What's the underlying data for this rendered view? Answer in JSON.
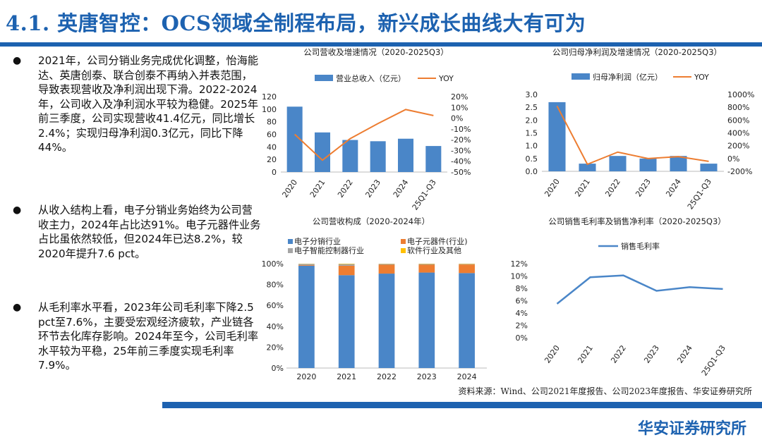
{
  "header": {
    "title": "4.1. 英唐智控：OCS领域全制程布局，新兴成长曲线大有可为"
  },
  "bullets": [
    "2021年，公司分销业务完成优化调整，怡海能达、英唐创泰、联合创泰不再纳入并表范围，导致表现营收及净利润出现下滑。2022-2024年，公司收入及净利润水平较为稳健。2025年前三季度，公司实现营收41.4亿元，同比增长2.4%；实现归母净利润0.3亿元，同比下降44%。",
    "从收入结构上看，电子分销业务始终为公司营收主力，2024年占比达91%。电子元器件业务占比虽依然较低，但2024年已达8.2%，较2020年提升7.6 pct。",
    "从毛利率水平看，2023年公司毛利率下降2.5 pct至7.6%，主要受宏观经济疲软，产业链各环节去化库存影响。2024年至今，公司毛利率水平较为平稳，25年前三季度实现毛利率7.9%。"
  ],
  "footer": {
    "source": "资料来源：Wind、公司2021年度报告、公司2023年度报告、华安证券研究所",
    "firm": "华安证券研究所"
  },
  "colors": {
    "brand": "#1d62b0",
    "bar": "#4a86c8",
    "line": "#ed7d31",
    "yellow": "#ffc000",
    "gray": "#a5a5a5"
  },
  "chart_data": [
    {
      "type": "bar",
      "title": "公司营收及增速情况（2020-2025Q3）",
      "categories": [
        "2020",
        "2021",
        "2022",
        "2023",
        "2024",
        "25Q1-Q3"
      ],
      "series": [
        {
          "name": "营业总收入（亿元）",
          "kind": "bar",
          "axis": "left",
          "values": [
            104,
            63,
            51,
            49,
            53,
            41.4
          ]
        },
        {
          "name": "YOY",
          "kind": "line",
          "axis": "right",
          "values": [
            -15,
            -39,
            -19,
            -5,
            8,
            2.4
          ]
        }
      ],
      "left_ticks": [
        "0",
        "20",
        "40",
        "60",
        "80",
        "100",
        "120"
      ],
      "right_ticks": [
        "-50%",
        "-40%",
        "-30%",
        "-20%",
        "-10%",
        "0%",
        "10%",
        "20%"
      ],
      "ylim": [
        0,
        120
      ],
      "y2lim": [
        -50,
        20
      ]
    },
    {
      "type": "bar",
      "title": "公司归母净利润及增速情况（2020-2025Q3）",
      "categories": [
        "2020",
        "2021",
        "2022",
        "2023",
        "2024",
        "25Q1-Q3"
      ],
      "series": [
        {
          "name": "归母净利润（亿元）",
          "kind": "bar",
          "axis": "left",
          "values": [
            2.7,
            0.3,
            0.6,
            0.5,
            0.6,
            0.3
          ]
        },
        {
          "name": "YOY",
          "kind": "line",
          "axis": "right",
          "values": [
            820,
            -90,
            100,
            0,
            30,
            -44
          ]
        }
      ],
      "left_ticks": [
        "0.0",
        "0.5",
        "1.0",
        "1.5",
        "2.0",
        "2.5",
        "3.0"
      ],
      "right_ticks": [
        "-200%",
        "0%",
        "200%",
        "400%",
        "600%",
        "800%",
        "1000%"
      ],
      "ylim": [
        0,
        3
      ],
      "y2lim": [
        -200,
        1000
      ]
    },
    {
      "type": "bar",
      "stacked": true,
      "title": "公司营收构成（2020-2024年）",
      "categories": [
        "2020",
        "2021",
        "2022",
        "2023",
        "2024"
      ],
      "series": [
        {
          "name": "电子分销行业",
          "values": [
            98.0,
            89.0,
            90.5,
            91.5,
            91.0
          ]
        },
        {
          "name": "电子元器件(行业)",
          "values": [
            0.6,
            9.0,
            8.5,
            7.5,
            8.2
          ]
        },
        {
          "name": "电子智能控制器行业",
          "values": [
            1.2,
            1.6,
            0.8,
            0.7,
            0.5
          ]
        },
        {
          "name": "软件行业及其他",
          "values": [
            0.2,
            0.4,
            0.2,
            0.3,
            0.3
          ]
        }
      ],
      "ticks": [
        "0%",
        "20%",
        "40%",
        "60%",
        "80%",
        "100%"
      ],
      "ylim": [
        0,
        100
      ]
    },
    {
      "type": "line",
      "title": "公司销售毛利率及销售净利率（2020-2025Q3）",
      "categories": [
        "2020",
        "2021",
        "2022",
        "2023",
        "2024",
        "25Q1-Q3"
      ],
      "series": [
        {
          "name": "销售毛利率",
          "values": [
            5.5,
            9.8,
            10.1,
            7.6,
            8.2,
            7.9
          ]
        }
      ],
      "ticks": [
        "0%",
        "2%",
        "4%",
        "6%",
        "8%",
        "10%",
        "12%"
      ],
      "ylim": [
        0,
        12
      ]
    }
  ]
}
